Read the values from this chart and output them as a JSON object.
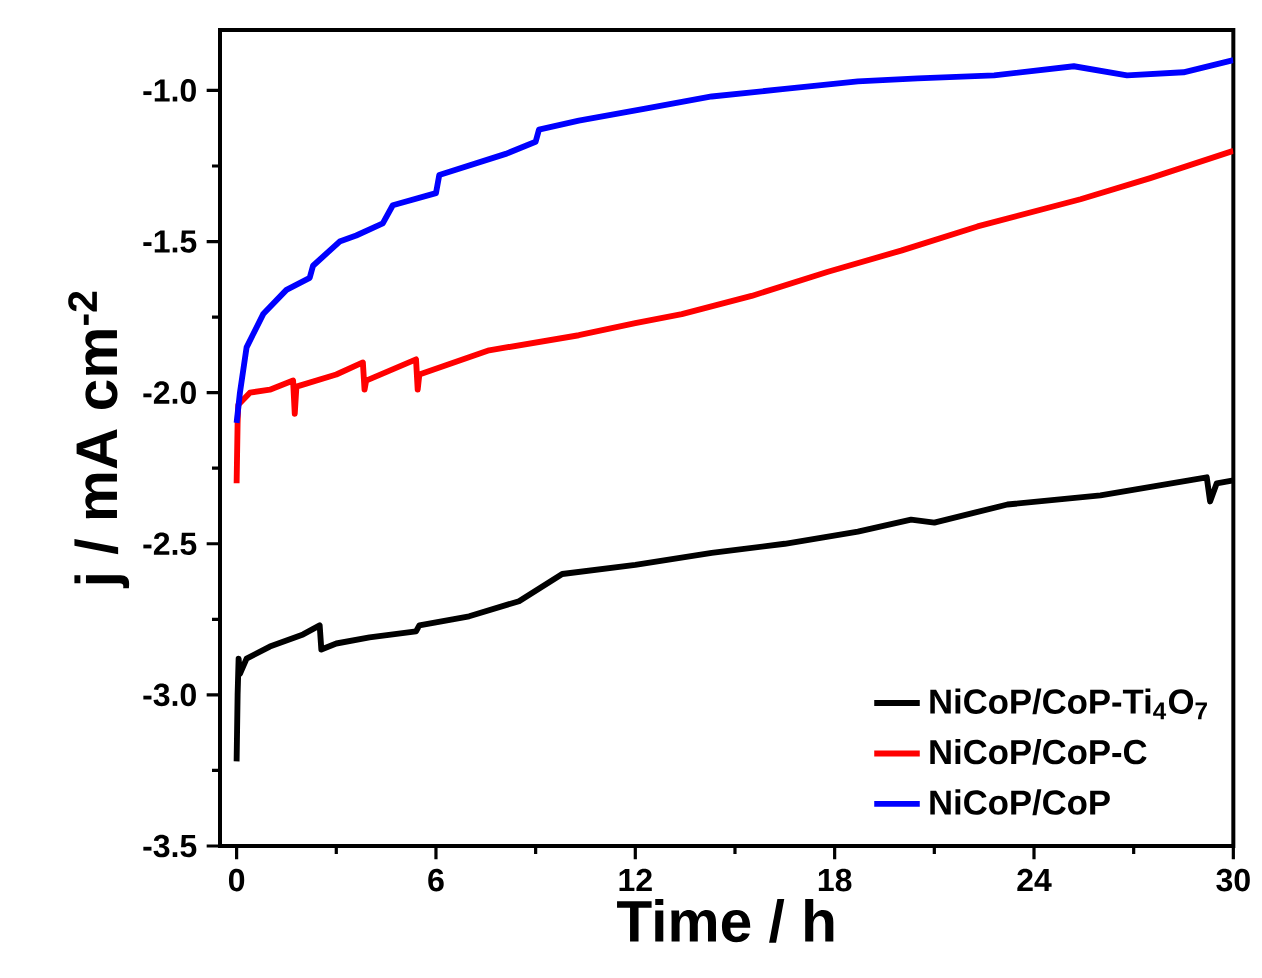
{
  "chart_data": {
    "type": "line",
    "xlabel": "Time / h",
    "ylabel": "j / mA cm$^{-2}$",
    "xlim": [
      -0.5,
      30
    ],
    "xticks": [
      0,
      6,
      12,
      18,
      24,
      30
    ],
    "ylim": [
      -3.5,
      -0.8
    ],
    "yticks": [
      -3.5,
      {
        "value": -3.0,
        "label": "-3.0"
      },
      -2.5,
      {
        "value": -2.0,
        "label": "-2.0"
      },
      -1.5,
      {
        "value": -1.0,
        "label": "-1.0"
      }
    ],
    "grid": false,
    "legend": "bottom right",
    "marker": "none",
    "line_style": "solid",
    "series": [
      {
        "name": "NiCoP/CoP-Ti$_{4}$O$_{7}$",
        "color": "#000000",
        "x": [
          0,
          0.03,
          0.06,
          0.1,
          0.3,
          1.0,
          2.0,
          2.5,
          2.55,
          3.0,
          4.0,
          5.4,
          5.5,
          7.0,
          8.5,
          9.8,
          12.0,
          14.3,
          16.5,
          18.7,
          20.3,
          21.0,
          23.2,
          26.0,
          29.2,
          29.3,
          29.5,
          30.0
        ],
        "values": [
          -3.22,
          -3.0,
          -2.88,
          -2.93,
          -2.88,
          -2.84,
          -2.8,
          -2.77,
          -2.85,
          -2.83,
          -2.81,
          -2.79,
          -2.77,
          -2.74,
          -2.69,
          -2.6,
          -2.57,
          -2.53,
          -2.5,
          -2.46,
          -2.42,
          -2.43,
          -2.37,
          -2.34,
          -2.28,
          -2.36,
          -2.3,
          -2.29
        ]
      },
      {
        "name": "NiCoP/CoP-C",
        "color": "#ff0000",
        "x": [
          0,
          0.03,
          0.05,
          0.4,
          1.0,
          1.7,
          1.75,
          1.8,
          3.0,
          3.8,
          3.85,
          3.9,
          5.4,
          5.45,
          5.5,
          7.6,
          10.3,
          12.0,
          13.4,
          15.5,
          17.8,
          20.0,
          22.3,
          25.4,
          27.5,
          30.0
        ],
        "values": [
          -2.3,
          -2.1,
          -2.04,
          -2.0,
          -1.99,
          -1.96,
          -2.07,
          -1.98,
          -1.94,
          -1.9,
          -1.99,
          -1.96,
          -1.89,
          -1.99,
          -1.94,
          -1.86,
          -1.81,
          -1.77,
          -1.74,
          -1.68,
          -1.6,
          -1.53,
          -1.45,
          -1.36,
          -1.29,
          -1.2
        ]
      },
      {
        "name": "NiCoP/CoP",
        "color": "#0000ff",
        "x": [
          0,
          0.1,
          0.3,
          0.8,
          1.5,
          2.2,
          2.3,
          3.1,
          3.6,
          4.4,
          4.7,
          6.0,
          6.1,
          8.1,
          9.0,
          9.1,
          10.3,
          12.3,
          14.3,
          16.5,
          18.7,
          20.5,
          22.8,
          25.2,
          26.8,
          28.5,
          30.0
        ],
        "values": [
          -2.1,
          -2.0,
          -1.85,
          -1.74,
          -1.66,
          -1.62,
          -1.58,
          -1.5,
          -1.48,
          -1.44,
          -1.38,
          -1.34,
          -1.28,
          -1.21,
          -1.17,
          -1.13,
          -1.1,
          -1.06,
          -1.02,
          -0.995,
          -0.97,
          -0.96,
          -0.95,
          -0.92,
          -0.95,
          -0.94,
          -0.9
        ]
      }
    ]
  }
}
